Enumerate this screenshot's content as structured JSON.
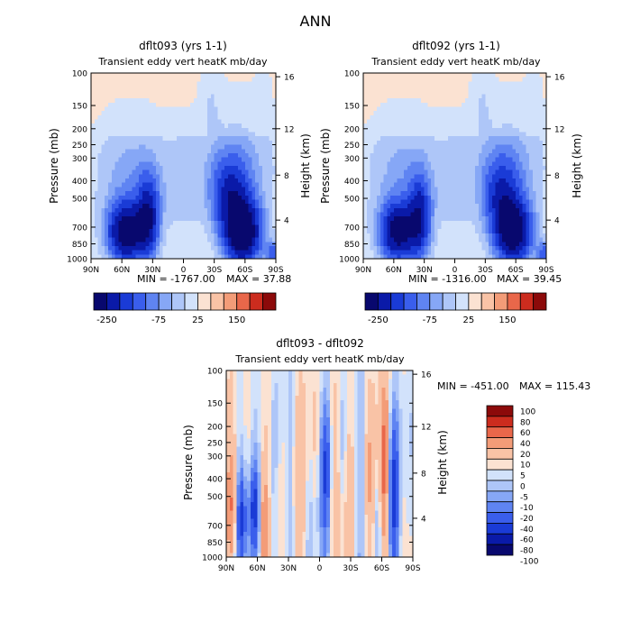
{
  "figure": {
    "title": "ANN"
  },
  "colors": {
    "main_scale": [
      "#08086e",
      "#0a1aa8",
      "#1a3bd6",
      "#3a5eec",
      "#5f84f2",
      "#86a7f6",
      "#aec6f8",
      "#d2e2fb",
      "#fbe2d2",
      "#f9c3a6",
      "#f39c78",
      "#e9674a",
      "#cc2c1e",
      "#8c0a0a"
    ],
    "diff_scale": [
      "#08086e",
      "#0a1aa8",
      "#1a3bd6",
      "#3a5eec",
      "#5f84f2",
      "#86a7f6",
      "#aec6f8",
      "#d2e2fb",
      "#fbe2d2",
      "#f9c3a6",
      "#f39c78",
      "#e9674a",
      "#cc2c1e",
      "#8c0a0a"
    ]
  },
  "chart_data": [
    {
      "type": "heatmap",
      "title": "dflt093 (yrs 1-1)",
      "subtitle": "Transient eddy vert heatK mb/day",
      "xlabel": "",
      "ylabel": "Pressure (mb)",
      "ylabel_right": "Height (km)",
      "x_ticks": [
        "90N",
        "60N",
        "30N",
        "0",
        "30S",
        "60S",
        "90S"
      ],
      "y_ticks": [
        "100",
        "150",
        "200",
        "250",
        "300",
        "400",
        "500",
        "700",
        "850",
        "1000"
      ],
      "y_right_ticks": [
        "16",
        "12",
        "8",
        "4"
      ],
      "stats": {
        "min_label": "MIN = -1767.00",
        "max_label": "MAX = 37.88",
        "min": -1767.0,
        "max": 37.88
      },
      "colorbar_labels": [
        "-250",
        "-75",
        "25",
        "150"
      ]
    },
    {
      "type": "heatmap",
      "title": "dflt092 (yrs 1-1)",
      "subtitle": "Transient eddy vert heatK mb/day",
      "xlabel": "",
      "ylabel": "Pressure (mb)",
      "ylabel_right": "Height (km)",
      "x_ticks": [
        "90N",
        "60N",
        "30N",
        "0",
        "30S",
        "60S",
        "90S"
      ],
      "y_ticks": [
        "100",
        "150",
        "200",
        "250",
        "300",
        "400",
        "500",
        "700",
        "850",
        "1000"
      ],
      "y_right_ticks": [
        "16",
        "12",
        "8",
        "4"
      ],
      "stats": {
        "min_label": "MIN = -1316.00",
        "max_label": "MAX = 39.45",
        "min": -1316.0,
        "max": 39.45
      },
      "colorbar_labels": [
        "-250",
        "-75",
        "25",
        "150"
      ]
    },
    {
      "type": "heatmap",
      "title": "dflt093 - dflt092",
      "subtitle": "Transient eddy vert heatK mb/day",
      "xlabel": "",
      "ylabel": "Pressure (mb)",
      "ylabel_right": "Height (km)",
      "x_ticks": [
        "90N",
        "60N",
        "30N",
        "0",
        "30S",
        "60S",
        "90S"
      ],
      "y_ticks": [
        "100",
        "150",
        "200",
        "250",
        "300",
        "400",
        "500",
        "700",
        "850",
        "1000"
      ],
      "y_right_ticks": [
        "16",
        "12",
        "8",
        "4"
      ],
      "stats": {
        "min_label": "MIN = -451.00",
        "max_label": "MAX = 115.43",
        "min": -451.0,
        "max": 115.43
      },
      "colorbar_labels": [
        "100",
        "80",
        "60",
        "40",
        "20",
        "10",
        "5",
        "0",
        "-5",
        "-10",
        "-20",
        "-40",
        "-60",
        "-80",
        "-100"
      ]
    }
  ]
}
